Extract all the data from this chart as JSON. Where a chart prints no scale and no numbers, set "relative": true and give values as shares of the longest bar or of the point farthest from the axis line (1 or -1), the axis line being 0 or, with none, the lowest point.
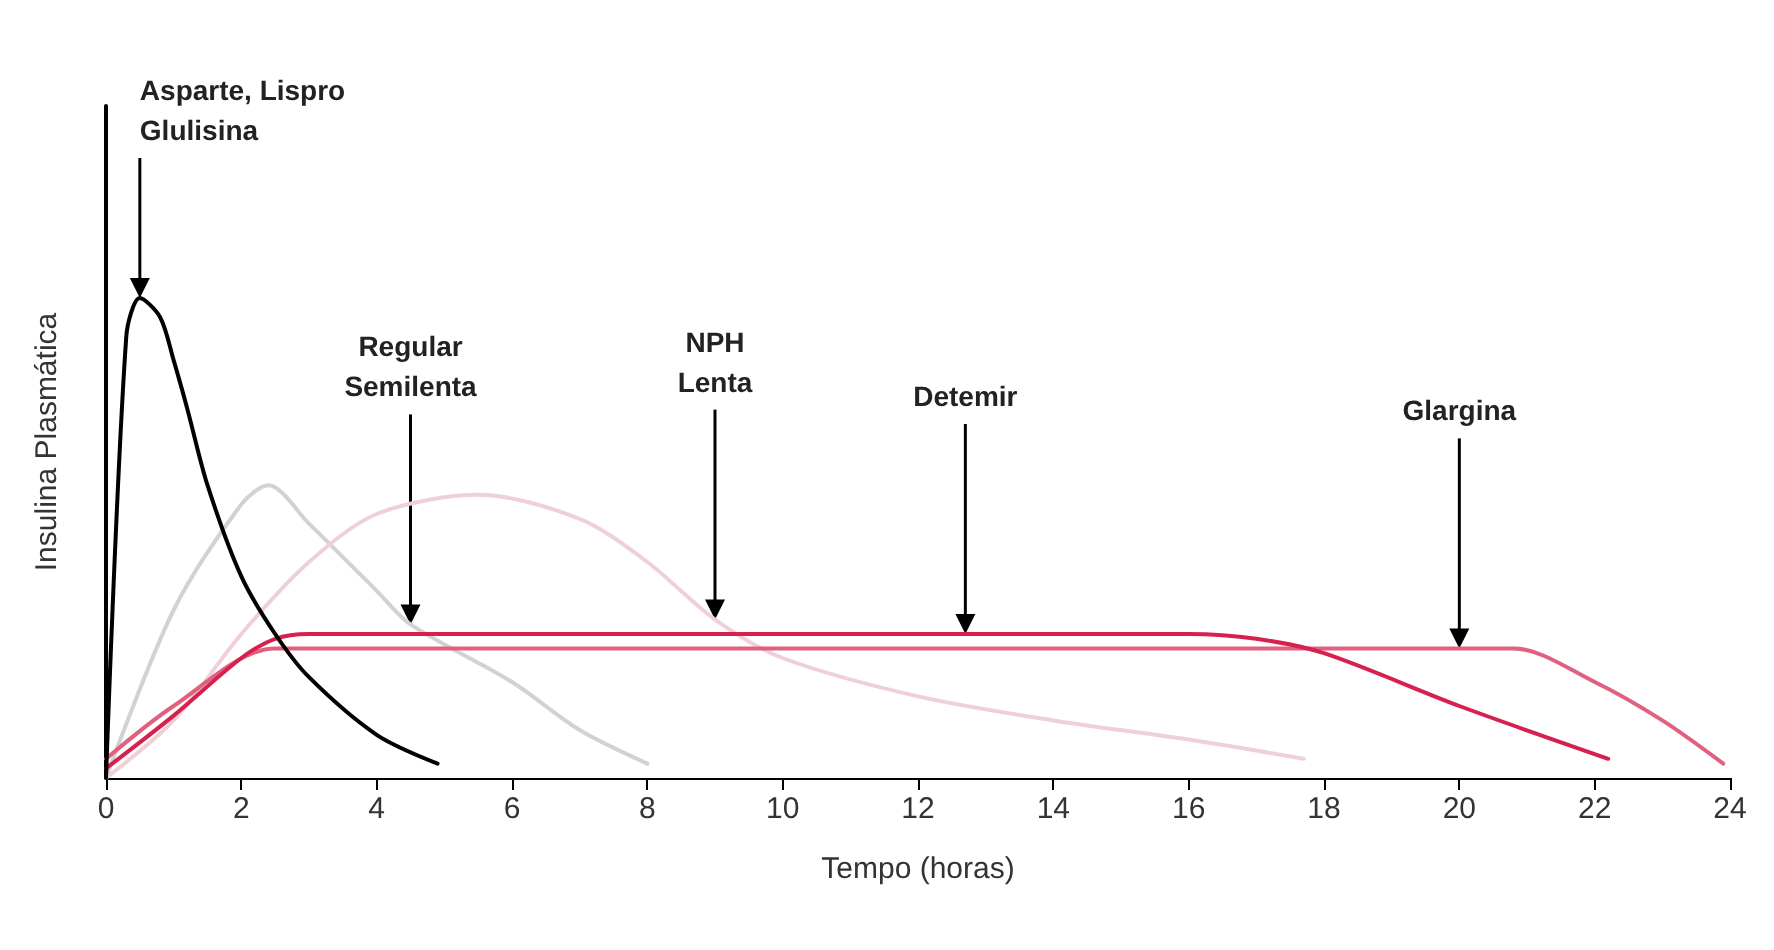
{
  "chart_data": {
    "type": "line",
    "relative": true,
    "xlabel": "Tempo (horas)",
    "ylabel": "Insulina Plasmática",
    "xlim": [
      0,
      24
    ],
    "xticks": [
      0,
      2,
      4,
      6,
      8,
      10,
      12,
      14,
      16,
      18,
      20,
      22,
      24
    ],
    "grid": false,
    "marker": "none",
    "line_style": "solid",
    "series": [
      {
        "color": "#d2d2d2",
        "x": [
          0,
          1,
          2,
          2.4,
          3,
          4,
          4.5,
          6,
          7,
          8
        ],
        "values": [
          0,
          0.35,
          0.57,
          0.61,
          0.53,
          0.39,
          0.32,
          0.2,
          0.1,
          0.03
        ]
      },
      {
        "color": "#f0d0d8",
        "x": [
          0,
          1,
          2,
          3,
          4,
          5.5,
          7,
          8,
          9,
          10,
          12,
          14,
          16,
          17.7
        ],
        "values": [
          0,
          0.12,
          0.3,
          0.45,
          0.55,
          0.59,
          0.54,
          0.45,
          0.33,
          0.25,
          0.17,
          0.12,
          0.08,
          0.04
        ]
      },
      {
        "color": "#e06080",
        "x": [
          0,
          1,
          2.5,
          20.8,
          22,
          23,
          23.9
        ],
        "values": [
          0.04,
          0.15,
          0.27,
          0.27,
          0.2,
          0.12,
          0.03
        ]
      },
      {
        "color": "#d6204e",
        "x": [
          0,
          1,
          2,
          2.5,
          3,
          16,
          17,
          18,
          20,
          22.2
        ],
        "values": [
          0.02,
          0.13,
          0.25,
          0.29,
          0.3,
          0.3,
          0.29,
          0.26,
          0.15,
          0.04
        ]
      },
      {
        "color": "#000000",
        "x": [
          0,
          0.3,
          0.5,
          0.8,
          1,
          1.2,
          1.5,
          2,
          2.5,
          3,
          4,
          4.9
        ],
        "values": [
          0,
          0.92,
          1,
          0.96,
          0.87,
          0.77,
          0.61,
          0.42,
          0.3,
          0.21,
          0.09,
          0.03
        ]
      }
    ],
    "annotations": [
      {
        "text": "Asparte, Lispro\nGlulisina",
        "x": 0.5,
        "y": 1
      },
      {
        "text": "Regular\nSemilenta",
        "x": 4.5,
        "y": 0.32
      },
      {
        "text": "NPH\nLenta",
        "x": 9,
        "y": 0.33
      },
      {
        "text": "Detemir",
        "x": 12.7,
        "y": 0.3
      },
      {
        "text": "Glargina",
        "x": 20,
        "y": 0.27
      }
    ]
  }
}
